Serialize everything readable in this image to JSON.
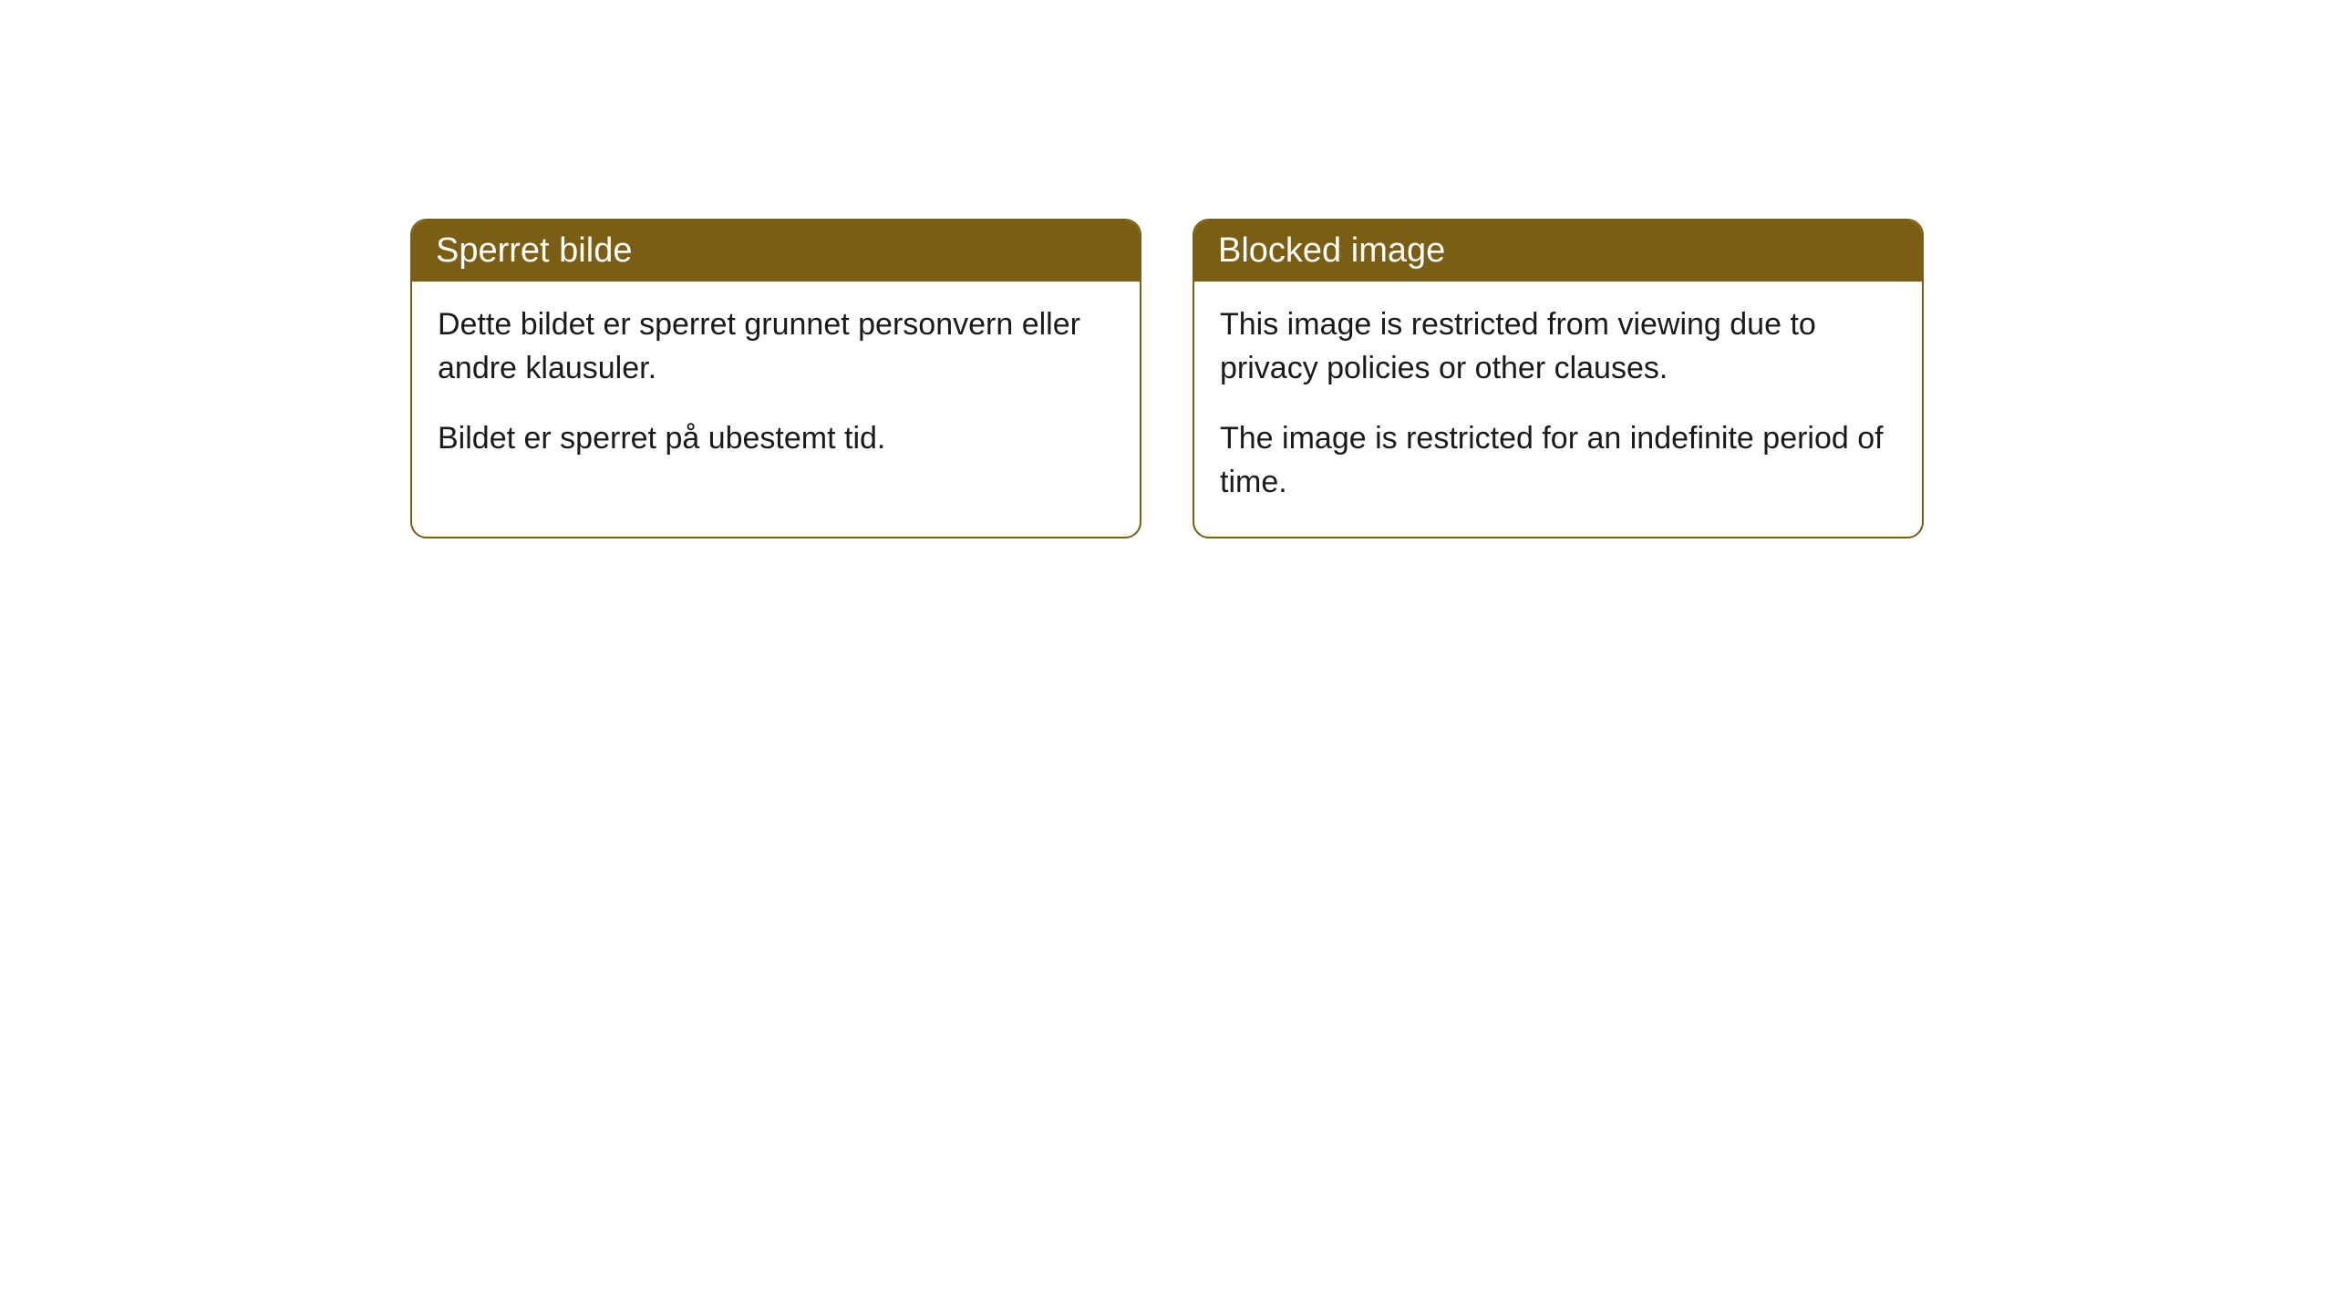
{
  "cards": [
    {
      "header": "Sperret bilde",
      "paragraph1": "Dette bildet er sperret grunnet personvern eller andre klausuler.",
      "paragraph2": "Bildet er sperret på ubestemt tid."
    },
    {
      "header": "Blocked image",
      "paragraph1": "This image is restricted from viewing due to privacy policies or other clauses.",
      "paragraph2": "The image is restricted for an indefinite period of time."
    }
  ],
  "styling": {
    "header_bg_color": "#7a5e13",
    "header_text_color": "#ffffff",
    "border_color": "#7a5e13",
    "body_text_color": "#1a1a1a",
    "card_bg_color": "#ffffff",
    "page_bg_color": "#ffffff",
    "border_radius": 18,
    "header_font_size": 38,
    "body_font_size": 34
  }
}
